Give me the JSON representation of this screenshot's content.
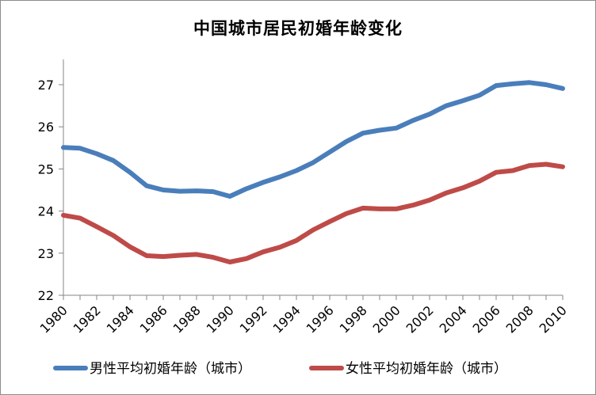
{
  "chart_data": {
    "type": "line",
    "title": "中国城市居民初婚年龄变化",
    "xlabel": "",
    "ylabel": "",
    "x": [
      1980,
      1981,
      1982,
      1983,
      1984,
      1985,
      1986,
      1987,
      1988,
      1989,
      1990,
      1991,
      1992,
      1993,
      1994,
      1995,
      1996,
      1997,
      1998,
      1999,
      2000,
      2001,
      2002,
      2003,
      2004,
      2005,
      2006,
      2007,
      2008,
      2009,
      2010
    ],
    "x_tick_labels": [
      "1980",
      "1982",
      "1984",
      "1986",
      "1988",
      "1990",
      "1992",
      "1994",
      "1996",
      "1998",
      "2000",
      "2002",
      "2004",
      "2006",
      "2008",
      "2010"
    ],
    "x_tick_values": [
      1980,
      1982,
      1984,
      1986,
      1988,
      1990,
      1992,
      1994,
      1996,
      1998,
      2000,
      2002,
      2004,
      2006,
      2008,
      2010
    ],
    "y_tick_labels": [
      "22",
      "23",
      "24",
      "25",
      "26",
      "27"
    ],
    "y_tick_values": [
      22,
      23,
      24,
      25,
      26,
      27
    ],
    "xlim": [
      1980,
      2010
    ],
    "ylim": [
      22,
      27.6
    ],
    "grid": false,
    "legend_placement": "bottom",
    "series": [
      {
        "name": "男性平均初婚年龄（城市）",
        "color": "#4a7ebb",
        "values": [
          25.51,
          25.49,
          25.36,
          25.2,
          24.92,
          24.6,
          24.5,
          24.47,
          24.48,
          24.46,
          24.35,
          24.53,
          24.68,
          24.81,
          24.96,
          25.15,
          25.4,
          25.65,
          25.85,
          25.92,
          25.97,
          26.15,
          26.3,
          26.5,
          26.62,
          26.75,
          26.98,
          27.02,
          27.05,
          27.0,
          26.91
        ]
      },
      {
        "name": "女性平均初婚年龄（城市）",
        "color": "#be4b48",
        "values": [
          23.9,
          23.83,
          23.63,
          23.42,
          23.15,
          22.94,
          22.92,
          22.95,
          22.97,
          22.9,
          22.79,
          22.87,
          23.03,
          23.14,
          23.3,
          23.55,
          23.75,
          23.94,
          24.07,
          24.05,
          24.05,
          24.14,
          24.26,
          24.43,
          24.55,
          24.71,
          24.92,
          24.96,
          25.08,
          25.11,
          25.05
        ]
      }
    ]
  }
}
